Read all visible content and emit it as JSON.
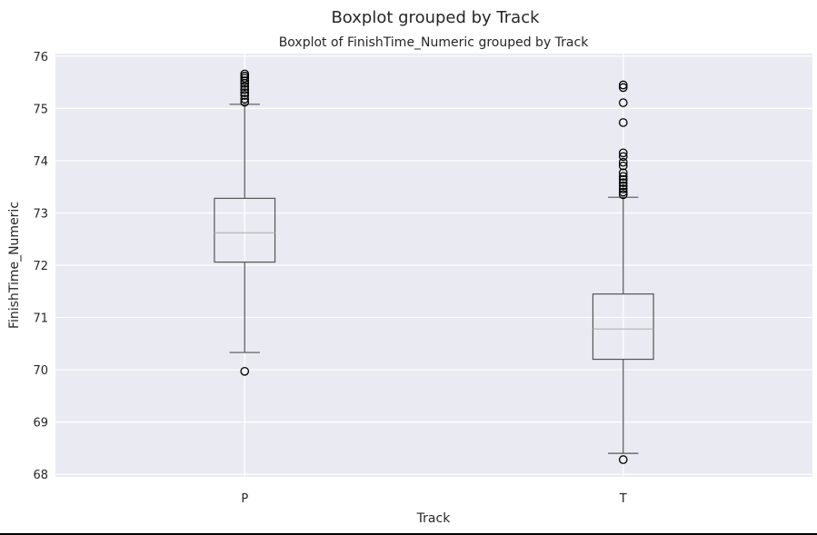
{
  "chart_data": {
    "type": "box",
    "suptitle": "Boxplot grouped by Track",
    "title": "Boxplot of FinishTime_Numeric grouped by Track",
    "xlabel": "Track",
    "ylabel": "FinishTime_Numeric",
    "ylim": [
      67.95,
      76.05
    ],
    "yticks": [
      68,
      69,
      70,
      71,
      72,
      73,
      74,
      75,
      76
    ],
    "grid": true,
    "categories": [
      "P",
      "T"
    ],
    "boxes": [
      {
        "name": "P",
        "whisker_low": 70.33,
        "q1": 72.06,
        "median": 72.62,
        "q3": 73.28,
        "whisker_high": 75.08,
        "fliers": [
          69.97,
          75.12,
          75.18,
          75.25,
          75.3,
          75.36,
          75.42,
          75.48,
          75.53,
          75.58,
          75.62,
          75.66
        ]
      },
      {
        "name": "T",
        "whisker_low": 68.4,
        "q1": 70.2,
        "median": 70.78,
        "q3": 71.45,
        "whisker_high": 73.3,
        "fliers": [
          68.28,
          73.35,
          73.4,
          73.46,
          73.52,
          73.58,
          73.64,
          73.7,
          73.77,
          73.9,
          73.97,
          74.08,
          74.15,
          74.73,
          75.11,
          75.4,
          75.45
        ]
      }
    ]
  }
}
